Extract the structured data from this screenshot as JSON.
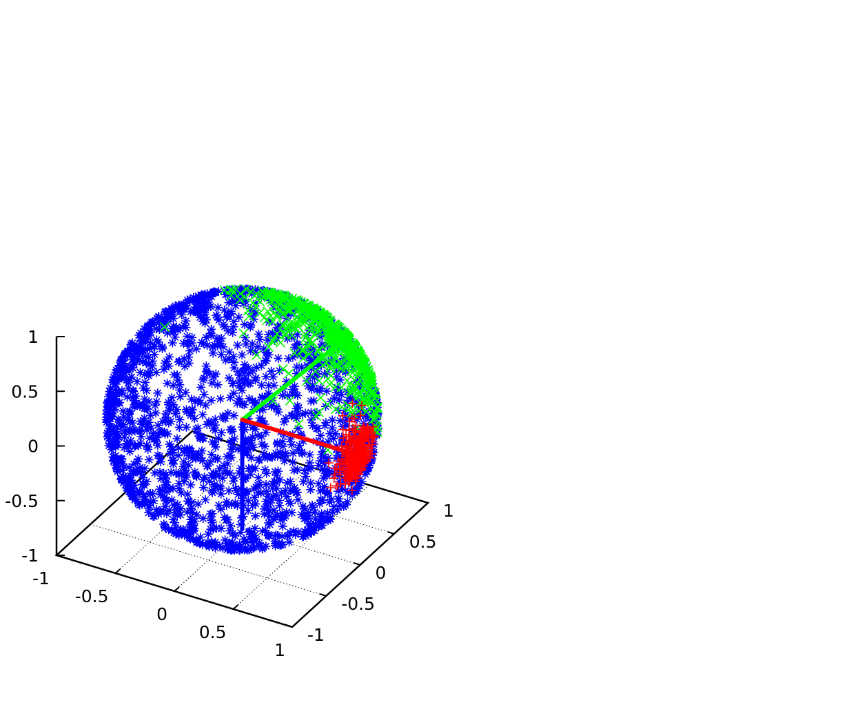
{
  "chart_data": {
    "type": "scatter",
    "title": "",
    "xlabel": "",
    "ylabel": "",
    "zlabel": "",
    "xlim": [
      -1,
      1
    ],
    "ylim": [
      -1,
      1
    ],
    "zlim": [
      -1,
      1
    ],
    "x_ticks": [
      "-1",
      "-0.5",
      "0",
      "0.5",
      "1"
    ],
    "y_ticks": [
      "-1",
      "-0.5",
      "0",
      "0.5",
      "1"
    ],
    "z_ticks": [
      "-1",
      "-0.5",
      "0",
      "0.5",
      "1"
    ],
    "grid": true,
    "legend": "none",
    "series": [
      {
        "marker": "asterisk",
        "color": "#0000ff",
        "description": "points uniformly distributed on the unit sphere",
        "count": 1800
      },
      {
        "marker": "cross",
        "color": "#00ff00",
        "description": "points clustered around direction (0.35, 0.8, 0.45)",
        "count": 600,
        "spread": 0.35
      },
      {
        "marker": "plus",
        "color": "#ff0000",
        "description": "points tightly clustered around direction (0.6, 0.6, -0.45)",
        "count": 300,
        "spread": 0.12
      }
    ],
    "vectors": [
      {
        "color": "#0000ff",
        "from": [
          0,
          0,
          0
        ],
        "to": [
          0,
          0,
          -1
        ]
      },
      {
        "color": "#00ff00",
        "from": [
          0,
          0,
          0
        ],
        "to": [
          0.4,
          0.82,
          0.4
        ]
      },
      {
        "color": "#ff0000",
        "from": [
          0,
          0,
          0
        ],
        "to": [
          0.62,
          0.62,
          -0.47
        ]
      }
    ]
  }
}
